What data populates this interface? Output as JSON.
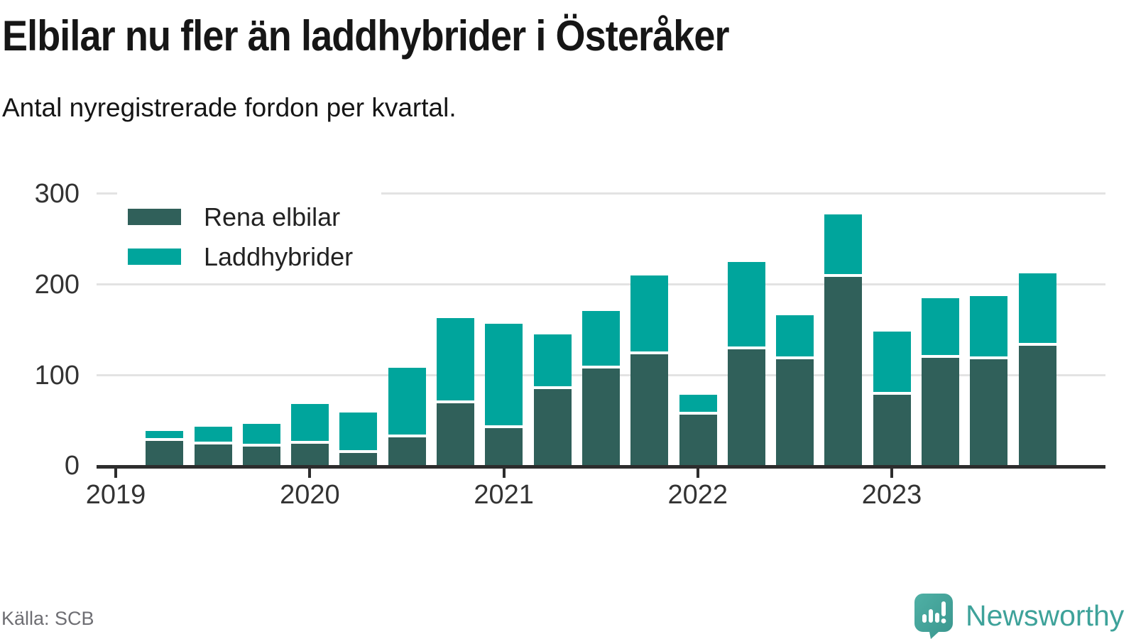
{
  "title": "Elbilar nu fler än laddhybrider i Österåker",
  "subtitle": "Antal nyregistrerade fordon per kvartal.",
  "source": "Källa: SCB",
  "branding": {
    "name": "Newsworthy"
  },
  "colors": {
    "rena_elbilar": "#30605a",
    "laddhybrider": "#00a59c",
    "gridline": "#e3e3e3",
    "axis": "#2d2d2d",
    "title_text": "#161616",
    "source_text": "#6e6e73",
    "brand_teal": "#3ea29a"
  },
  "chart_data": {
    "type": "bar",
    "stacked": true,
    "title": "Elbilar nu fler än laddhybrider i Österåker",
    "subtitle": "Antal nyregistrerade fordon per kvartal.",
    "categories": [
      "2019 Q2",
      "2019 Q3",
      "2019 Q4",
      "2020 Q1",
      "2020 Q2",
      "2020 Q3",
      "2020 Q4",
      "2021 Q1",
      "2021 Q2",
      "2021 Q3",
      "2021 Q4",
      "2022 Q1",
      "2022 Q2",
      "2022 Q3",
      "2022 Q4",
      "2023 Q1",
      "2023 Q2",
      "2023 Q3",
      "2023 Q4"
    ],
    "series": [
      {
        "name": "Rena elbilar",
        "color": "#30605a",
        "values": [
          28,
          24,
          22,
          25,
          15,
          32,
          70,
          42,
          85,
          108,
          124,
          57,
          129,
          118,
          209,
          79,
          120,
          118,
          133
        ]
      },
      {
        "name": "Laddhybrider",
        "color": "#00a59c",
        "values": [
          10,
          19,
          24,
          43,
          44,
          76,
          93,
          115,
          60,
          63,
          86,
          21,
          96,
          48,
          68,
          69,
          65,
          69,
          79
        ]
      }
    ],
    "x_tick_labels": [
      "2019",
      "2020",
      "2021",
      "2022",
      "2023"
    ],
    "y_ticks": [
      "0",
      "100",
      "200",
      "300"
    ],
    "ylim": [
      0,
      300
    ],
    "grid": "horizontal",
    "legend_position": "top-left"
  }
}
